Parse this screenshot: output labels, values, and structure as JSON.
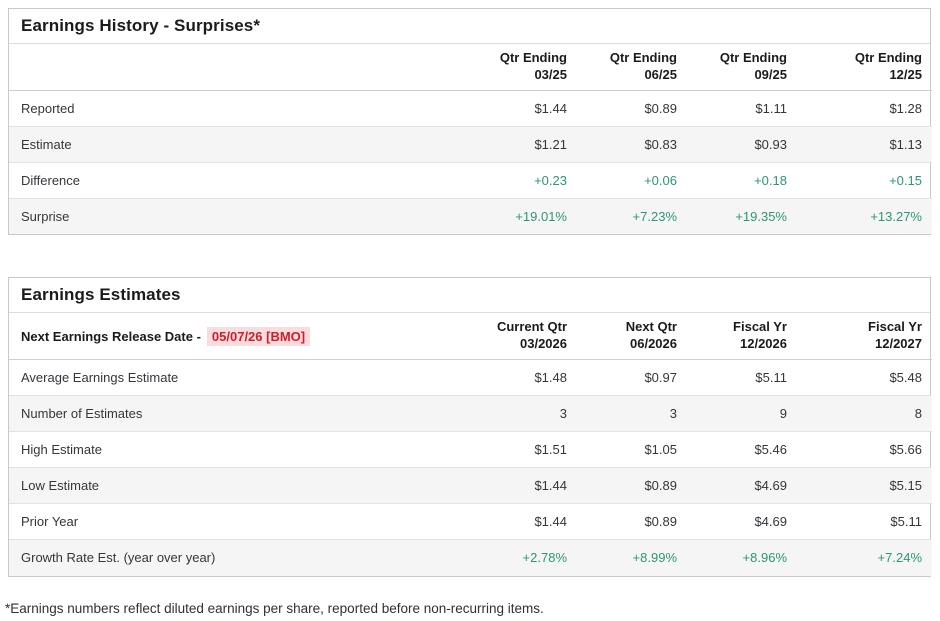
{
  "colors": {
    "positive": "#2E9577",
    "release_text": "#CC1F2D",
    "release_bg": "#FADCDC",
    "row_alt": "#F5F5F5",
    "border_outer": "#C9C9C9"
  },
  "history_table": {
    "title": "Earnings History - Surprises*",
    "columns": [
      {
        "line1": "Qtr Ending",
        "line2": "03/25"
      },
      {
        "line1": "Qtr Ending",
        "line2": "06/25"
      },
      {
        "line1": "Qtr Ending",
        "line2": "09/25"
      },
      {
        "line1": "Qtr Ending",
        "line2": "12/25"
      }
    ],
    "rows": [
      {
        "label": "Reported",
        "values": [
          "$1.44",
          "$0.89",
          "$1.11",
          "$1.28"
        ],
        "positive": false
      },
      {
        "label": "Estimate",
        "values": [
          "$1.21",
          "$0.83",
          "$0.93",
          "$1.13"
        ],
        "positive": false
      },
      {
        "label": "Difference",
        "values": [
          "+0.23",
          "+0.06",
          "+0.18",
          "+0.15"
        ],
        "positive": true
      },
      {
        "label": "Surprise",
        "values": [
          "+19.01%",
          "+7.23%",
          "+19.35%",
          "+13.27%"
        ],
        "positive": true
      }
    ]
  },
  "estimates_table": {
    "title": "Earnings Estimates",
    "release_label": "Next Earnings Release Date -",
    "release_date": "05/07/26 [BMO]",
    "columns": [
      {
        "line1": "Current Qtr",
        "line2": "03/2026"
      },
      {
        "line1": "Next Qtr",
        "line2": "06/2026"
      },
      {
        "line1": "Fiscal Yr",
        "line2": "12/2026"
      },
      {
        "line1": "Fiscal Yr",
        "line2": "12/2027"
      }
    ],
    "rows": [
      {
        "label": "Average Earnings Estimate",
        "values": [
          "$1.48",
          "$0.97",
          "$5.11",
          "$5.48"
        ],
        "positive": false
      },
      {
        "label": "Number of Estimates",
        "values": [
          "3",
          "3",
          "9",
          "8"
        ],
        "positive": false
      },
      {
        "label": "High Estimate",
        "values": [
          "$1.51",
          "$1.05",
          "$5.46",
          "$5.66"
        ],
        "positive": false
      },
      {
        "label": "Low Estimate",
        "values": [
          "$1.44",
          "$0.89",
          "$4.69",
          "$5.15"
        ],
        "positive": false
      },
      {
        "label": "Prior Year",
        "values": [
          "$1.44",
          "$0.89",
          "$4.69",
          "$5.11"
        ],
        "positive": false
      },
      {
        "label": "Growth Rate Est. (year over year)",
        "values": [
          "+2.78%",
          "+8.99%",
          "+8.96%",
          "+7.24%"
        ],
        "positive": true
      }
    ]
  },
  "footnote": "*Earnings numbers reflect diluted earnings per share, reported before non-recurring items."
}
